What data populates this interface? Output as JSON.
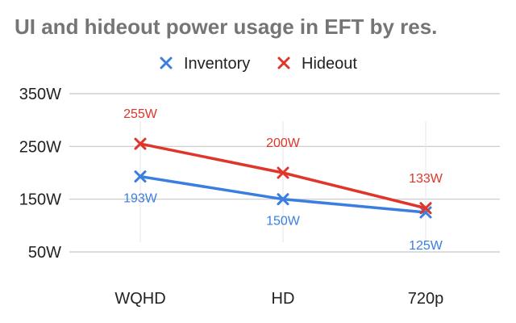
{
  "chart_data": {
    "type": "line",
    "title": "UI and hideout power usage in EFT by res.",
    "xlabel": "",
    "ylabel": "",
    "categories": [
      "WQHD",
      "HD",
      "720p"
    ],
    "series": [
      {
        "name": "Inventory",
        "values": [
          193,
          150,
          125
        ],
        "labels": [
          "193W",
          "150W",
          "125W"
        ],
        "color": "#3a7ee0",
        "label_position": "below"
      },
      {
        "name": "Hideout",
        "values": [
          255,
          200,
          133
        ],
        "labels": [
          "255W",
          "200W",
          "133W"
        ],
        "color": "#e0352b",
        "label_position": "above"
      }
    ],
    "yticks": [
      {
        "value": 50,
        "label": "50W"
      },
      {
        "value": 150,
        "label": "150W"
      },
      {
        "value": 250,
        "label": "250W"
      },
      {
        "value": 350,
        "label": "350W"
      }
    ],
    "ylim": [
      50,
      350
    ],
    "grid": true,
    "legend": "top-center",
    "marker": "x-cross"
  }
}
